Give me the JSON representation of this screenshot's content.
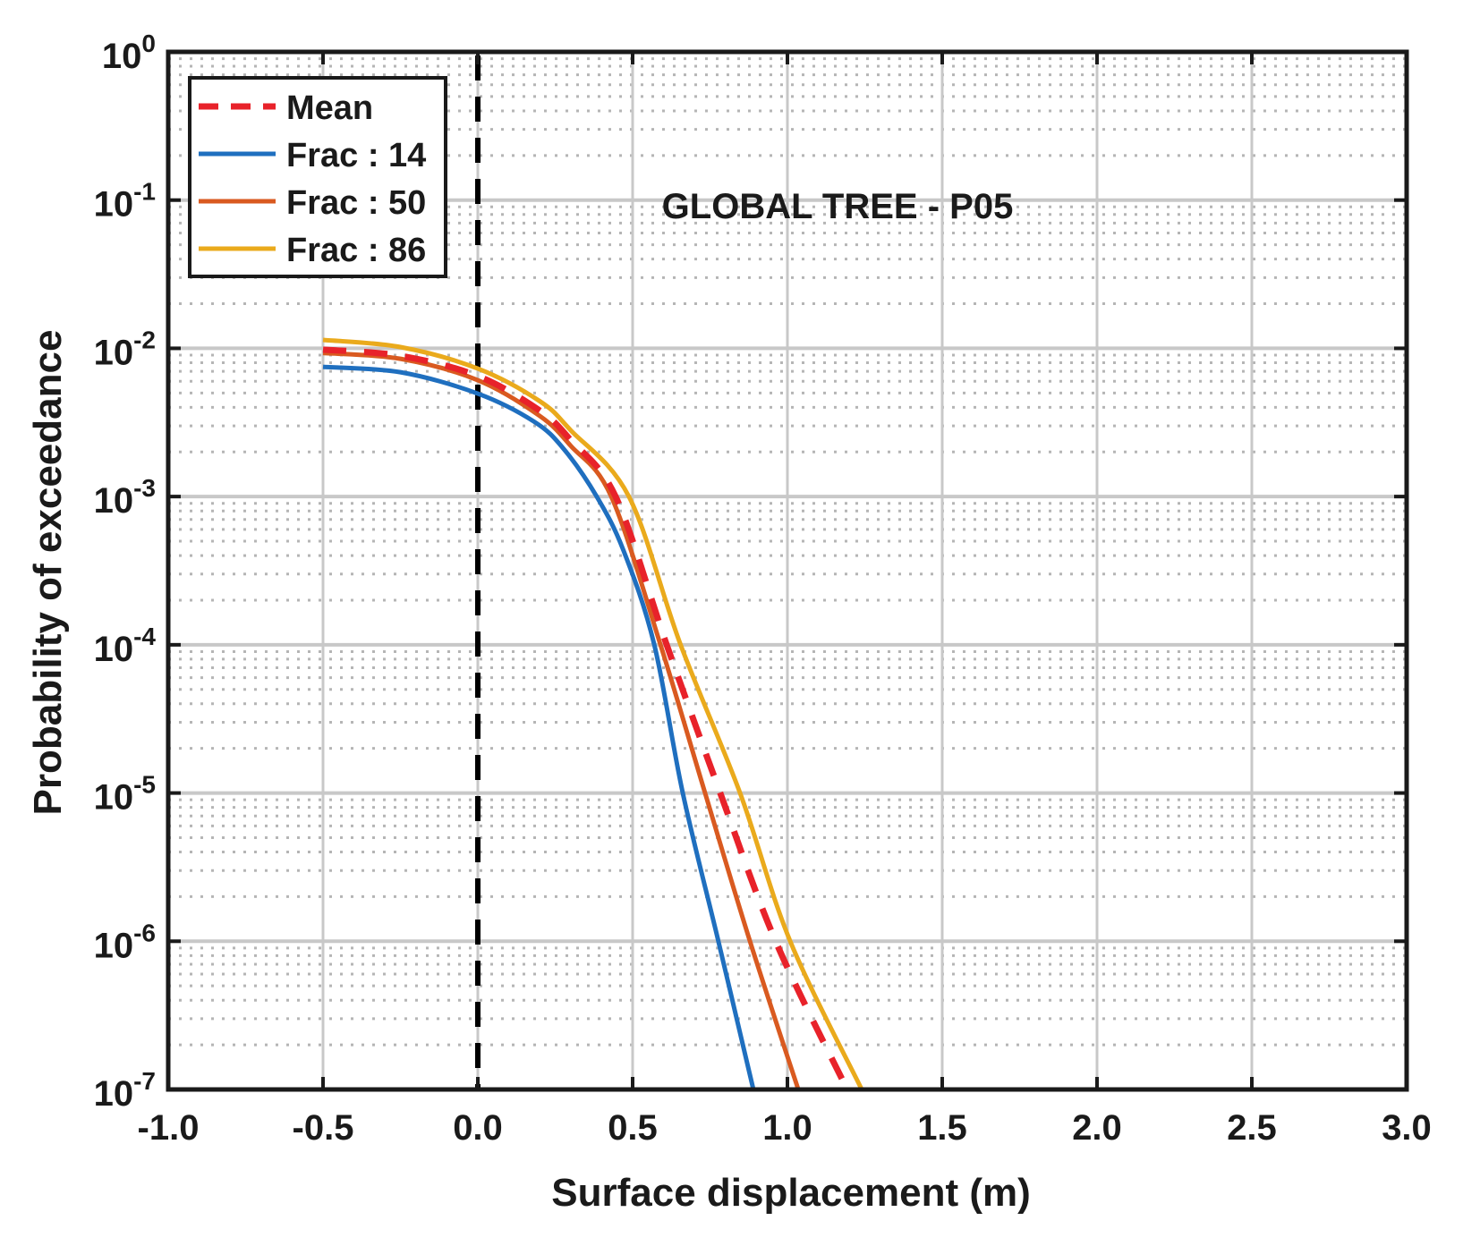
{
  "chart_data": {
    "type": "line",
    "title": "GLOBAL TREE - P05",
    "xlabel": "Surface displacement (m)",
    "ylabel": "Probability of exceedance",
    "xlim": [
      -1.0,
      3.0
    ],
    "ylim": [
      1e-07,
      1
    ],
    "yscale": "log",
    "grid": true,
    "legend_position": "top-left",
    "x_ticks": [
      "-1.0",
      "-0.5",
      "0.0",
      "0.5",
      "1.0",
      "1.5",
      "2.0",
      "2.5",
      "3.0"
    ],
    "y_ticks": [
      {
        "base": "10",
        "exp": "0"
      },
      {
        "base": "10",
        "exp": "-1"
      },
      {
        "base": "10",
        "exp": "-2"
      },
      {
        "base": "10",
        "exp": "-3"
      },
      {
        "base": "10",
        "exp": "-4"
      },
      {
        "base": "10",
        "exp": "-5"
      },
      {
        "base": "10",
        "exp": "-6"
      },
      {
        "base": "10",
        "exp": "-7"
      }
    ],
    "reference_line": {
      "x": 0.0,
      "color": "#000000",
      "style": "dashed"
    },
    "series": [
      {
        "name": "Mean",
        "color": "#e8222a",
        "style": "dashed",
        "x": [
          -0.5,
          -0.25,
          0.0,
          0.2,
          0.3,
          0.445,
          0.61,
          0.783,
          0.962,
          1.193
        ],
        "y": [
          0.0098,
          0.0089,
          0.0065,
          0.0038,
          0.0024,
          0.001,
          0.0001,
          1e-05,
          1e-06,
          1e-07
        ]
      },
      {
        "name": "Frac : 14",
        "color": "#1f6fbf",
        "style": "solid",
        "x": [
          -0.5,
          -0.25,
          0.0,
          0.182,
          0.277,
          0.384,
          0.471,
          0.57,
          0.662,
          0.777,
          0.89
        ],
        "y": [
          0.0075,
          0.0069,
          0.00495,
          0.0032,
          0.0021,
          0.001,
          0.00043,
          0.0001,
          1e-05,
          1e-06,
          1e-07
        ]
      },
      {
        "name": "Frac : 50",
        "color": "#d95a20",
        "style": "solid",
        "x": [
          -0.5,
          -0.25,
          0.0,
          0.2,
          0.3,
          0.431,
          0.59,
          0.734,
          0.879,
          1.035
        ],
        "y": [
          0.0093,
          0.0085,
          0.0061,
          0.0035,
          0.0022,
          0.001,
          0.0001,
          1e-05,
          1e-06,
          1e-07
        ]
      },
      {
        "name": "Frac : 86",
        "color": "#eaaa1c",
        "style": "solid",
        "x": [
          -0.5,
          -0.25,
          0.0,
          0.2,
          0.3,
          0.488,
          0.655,
          0.847,
          1.009,
          1.24
        ],
        "y": [
          0.0114,
          0.0102,
          0.0073,
          0.0044,
          0.0028,
          0.001,
          0.0001,
          1e-05,
          1e-06,
          1e-07
        ]
      }
    ]
  }
}
